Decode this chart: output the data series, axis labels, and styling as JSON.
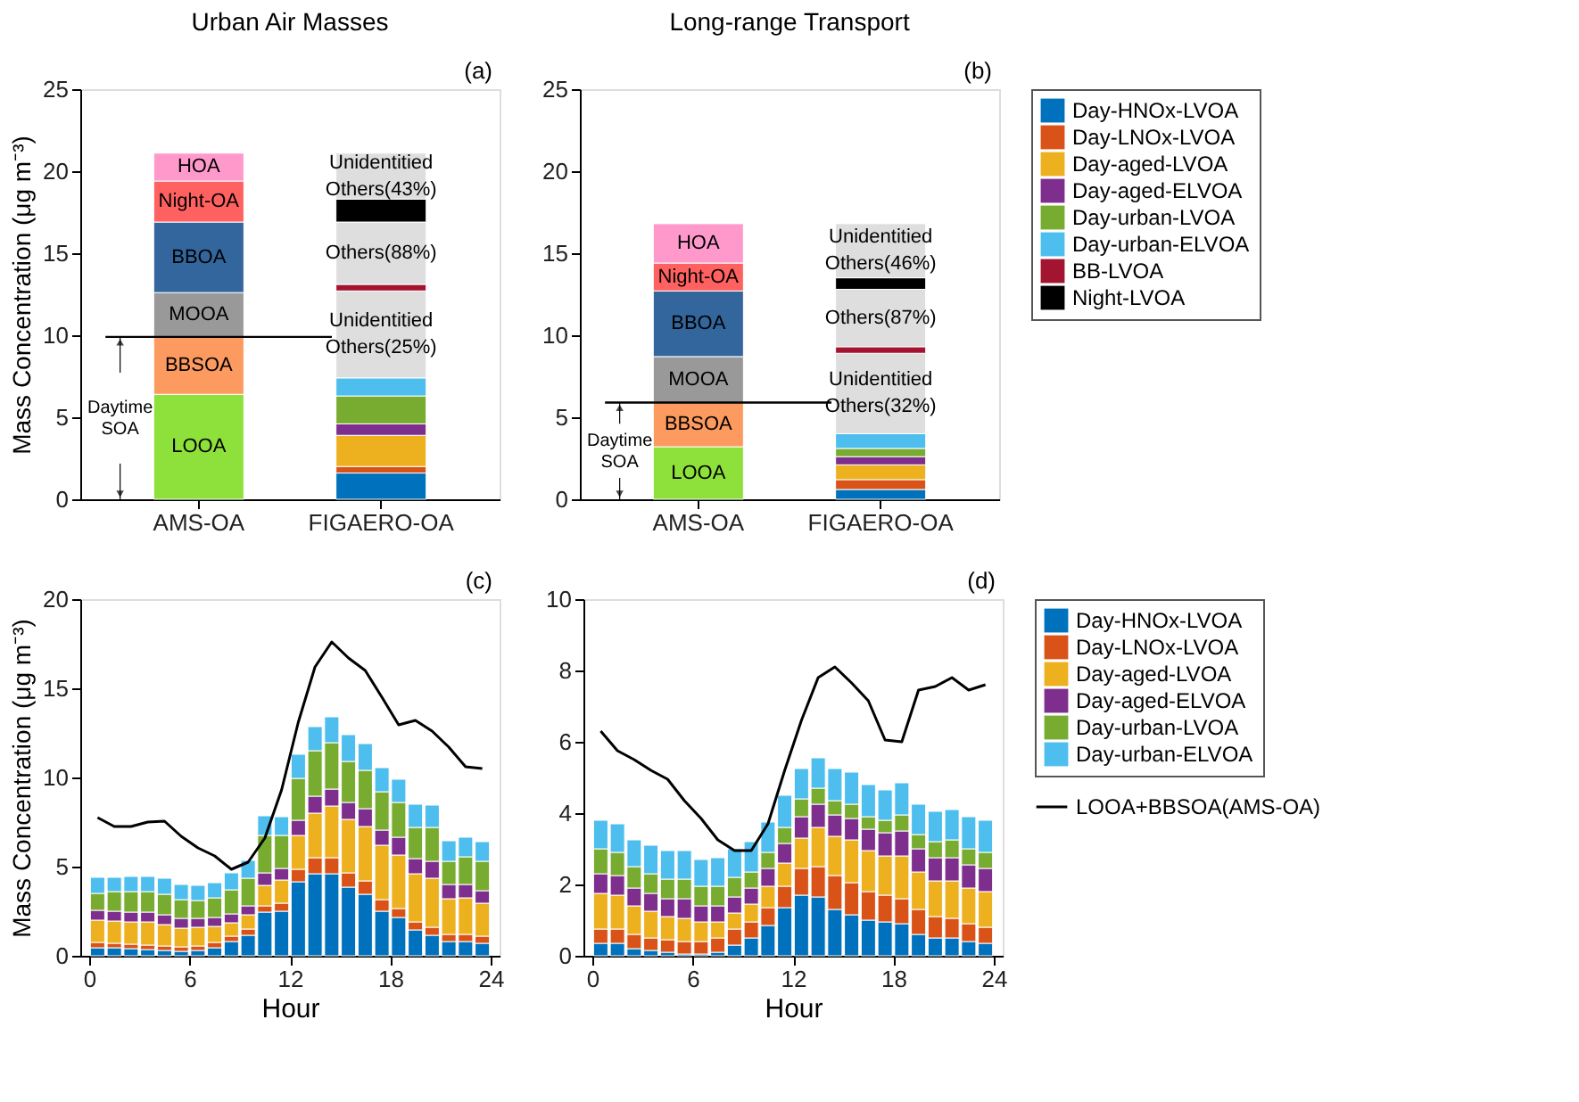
{
  "chart_data": [
    {
      "type": "bar",
      "stacked": true,
      "title": "Urban Air Masses",
      "ylabel": "Mass Concentration (μg m⁻³)",
      "categories": [
        "AMS-OA",
        "FIGAERO-OA"
      ],
      "ylim": [
        0,
        25
      ],
      "yticks": [
        0,
        5,
        10,
        15,
        20,
        25
      ],
      "series": [
        {
          "color": "#8ee03a",
          "values": [
            6.4,
            null
          ],
          "value_labels": [
            "LOOA",
            null
          ]
        },
        {
          "color": "#fc9a60",
          "values": [
            3.5,
            null
          ],
          "value_labels": [
            "BBSOA",
            null
          ]
        },
        {
          "color": "#999999",
          "values": [
            2.7,
            null
          ],
          "value_labels": [
            "MOOA",
            null
          ]
        },
        {
          "color": "#33669c",
          "values": [
            4.3,
            null
          ],
          "value_labels": [
            "BBOA",
            null
          ]
        },
        {
          "color": "#ff6060",
          "values": [
            2.5,
            null
          ],
          "value_labels": [
            "Night-OA",
            null
          ]
        },
        {
          "color": "#ff99cc",
          "values": [
            1.7,
            null
          ],
          "value_labels": [
            "HOA",
            null
          ]
        },
        {
          "color": "#0072bd",
          "values": [
            null,
            1.6
          ]
        },
        {
          "color": "#d95319",
          "values": [
            null,
            0.4
          ]
        },
        {
          "color": "#edb120",
          "values": [
            null,
            1.9
          ]
        },
        {
          "color": "#7e2f8e",
          "values": [
            null,
            0.7
          ]
        },
        {
          "color": "#77ac30",
          "values": [
            null,
            1.7
          ]
        },
        {
          "color": "#4dbeee",
          "values": [
            null,
            1.1
          ]
        },
        {
          "color": "#dedede",
          "values": [
            null,
            5.3
          ],
          "value_labels": [
            null,
            "Unidentitied Others(25%)"
          ]
        },
        {
          "color": "#a2142f",
          "values": [
            null,
            0.4
          ]
        },
        {
          "color": "#dedede",
          "values": [
            null,
            3.8
          ],
          "value_labels": [
            null,
            "Others(88%)"
          ]
        },
        {
          "color": "#000000",
          "values": [
            null,
            1.4
          ]
        },
        {
          "color": "#dedede",
          "values": [
            null,
            2.8
          ],
          "value_labels": [
            null,
            "Unidentitied Others(43%)"
          ]
        }
      ],
      "ref_lines": [
        {
          "axis": "y",
          "value": 9.9,
          "label": "Daytime SOA"
        }
      ],
      "annotations": [
        "(a)"
      ]
    },
    {
      "type": "bar",
      "stacked": true,
      "title": "Long-range Transport",
      "categories": [
        "AMS-OA",
        "FIGAERO-OA"
      ],
      "ylim": [
        0,
        25
      ],
      "yticks": [
        0,
        5,
        10,
        15,
        20,
        25
      ],
      "legend": "right",
      "series": [
        {
          "color": "#8ee03a",
          "values": [
            3.2,
            null
          ],
          "value_labels": [
            "LOOA",
            null
          ]
        },
        {
          "color": "#fc9a60",
          "values": [
            2.7,
            null
          ],
          "value_labels": [
            "BBSOA",
            null
          ]
        },
        {
          "color": "#999999",
          "values": [
            2.8,
            null
          ],
          "value_labels": [
            "MOOA",
            null
          ]
        },
        {
          "color": "#33669c",
          "values": [
            4.0,
            null
          ],
          "value_labels": [
            "BBOA",
            null
          ]
        },
        {
          "color": "#ff6060",
          "values": [
            1.7,
            null
          ],
          "value_labels": [
            "Night-OA",
            null
          ]
        },
        {
          "color": "#ff99cc",
          "values": [
            2.4,
            null
          ],
          "value_labels": [
            "HOA",
            null
          ]
        },
        {
          "name": "Day-HNOx-LVOA",
          "color": "#0072bd",
          "values": [
            null,
            0.6
          ]
        },
        {
          "name": "Day-LNOx-LVOA",
          "color": "#d95319",
          "values": [
            null,
            0.6
          ]
        },
        {
          "name": "Day-aged-LVOA",
          "color": "#edb120",
          "values": [
            null,
            0.9
          ]
        },
        {
          "name": "Day-aged-ELVOA",
          "color": "#7e2f8e",
          "values": [
            null,
            0.5
          ]
        },
        {
          "name": "Day-urban-LVOA",
          "color": "#77ac30",
          "values": [
            null,
            0.5
          ]
        },
        {
          "name": "Day-urban-ELVOA",
          "color": "#4dbeee",
          "values": [
            null,
            0.9
          ]
        },
        {
          "color": "#dedede",
          "values": [
            null,
            4.9
          ],
          "value_labels": [
            null,
            "Unidentitied Others(32%)"
          ]
        },
        {
          "name": "BB-LVOA",
          "color": "#a2142f",
          "values": [
            null,
            0.4
          ]
        },
        {
          "color": "#dedede",
          "values": [
            null,
            3.5
          ],
          "value_labels": [
            null,
            "Others(87%)"
          ]
        },
        {
          "name": "Night-LVOA",
          "color": "#000000",
          "values": [
            null,
            0.7
          ]
        },
        {
          "color": "#dedede",
          "values": [
            null,
            3.3
          ],
          "value_labels": [
            null,
            "Unidentitied Others(46%)"
          ]
        }
      ],
      "ref_lines": [
        {
          "axis": "y",
          "value": 5.9,
          "label": "Daytime SOA"
        }
      ],
      "annotations": [
        "(b)"
      ]
    },
    {
      "type": "bar",
      "stacked": true,
      "xlabel": "Hour",
      "ylabel": "Mass Concentration (μg m⁻³)",
      "x": [
        0.5,
        1.5,
        2.5,
        3.5,
        4.5,
        5.5,
        6.5,
        7.5,
        8.5,
        9.5,
        10.5,
        11.5,
        12.5,
        13.5,
        14.5,
        15.5,
        16.5,
        17.5,
        18.5,
        19.5,
        20.5,
        21.5,
        22.5,
        23.5
      ],
      "xlim": [
        0,
        24
      ],
      "xticks": [
        0,
        6,
        12,
        18,
        24
      ],
      "ylim": [
        0,
        20
      ],
      "yticks": [
        0,
        5,
        10,
        15,
        20
      ],
      "series": [
        {
          "color": "#0072bd",
          "values": [
            0.45,
            0.45,
            0.4,
            0.35,
            0.3,
            0.25,
            0.3,
            0.45,
            0.8,
            1.15,
            2.45,
            2.5,
            4.15,
            4.6,
            4.6,
            3.85,
            3.45,
            2.5,
            2.15,
            1.45,
            1.15,
            0.8,
            0.8,
            0.7
          ]
        },
        {
          "color": "#d95319",
          "values": [
            0.3,
            0.25,
            0.25,
            0.25,
            0.25,
            0.25,
            0.25,
            0.3,
            0.3,
            0.35,
            0.35,
            0.45,
            0.7,
            0.9,
            0.9,
            0.8,
            0.75,
            0.65,
            0.5,
            0.45,
            0.45,
            0.4,
            0.4,
            0.4
          ]
        },
        {
          "color": "#edb120",
          "values": [
            1.25,
            1.25,
            1.25,
            1.3,
            1.2,
            1.05,
            1.05,
            0.9,
            0.75,
            0.8,
            1.15,
            1.3,
            1.9,
            2.5,
            2.9,
            3.0,
            3.05,
            3.05,
            3.0,
            2.7,
            2.75,
            2.0,
            2.05,
            1.85
          ]
        },
        {
          "color": "#7e2f8e",
          "values": [
            0.55,
            0.55,
            0.55,
            0.55,
            0.55,
            0.55,
            0.5,
            0.5,
            0.5,
            0.5,
            0.7,
            0.65,
            0.85,
            0.95,
            0.95,
            0.95,
            1.0,
            0.85,
            1.0,
            0.85,
            0.95,
            0.8,
            0.75,
            0.7
          ]
        },
        {
          "color": "#77ac30",
          "values": [
            0.95,
            1.1,
            1.15,
            1.15,
            1.15,
            1.05,
            1.0,
            1.1,
            1.35,
            1.55,
            2.1,
            1.85,
            2.35,
            2.55,
            2.6,
            2.3,
            2.15,
            2.15,
            1.95,
            1.75,
            1.9,
            1.3,
            1.55,
            1.65
          ]
        },
        {
          "color": "#4dbeee",
          "values": [
            0.9,
            0.8,
            0.85,
            0.85,
            0.9,
            0.85,
            0.85,
            0.85,
            0.95,
            1.0,
            1.1,
            1.05,
            1.35,
            1.35,
            1.45,
            1.5,
            1.5,
            1.35,
            1.3,
            1.3,
            1.25,
            1.15,
            1.1,
            1.1
          ]
        },
        {
          "type": "line",
          "color": "#000000",
          "values": [
            7.75,
            7.25,
            7.25,
            7.5,
            7.55,
            6.7,
            6.05,
            5.6,
            4.85,
            5.25,
            6.6,
            9.3,
            13.1,
            16.2,
            17.6,
            16.7,
            16.0,
            14.5,
            12.95,
            13.2,
            12.6,
            11.7,
            10.6,
            10.5
          ]
        }
      ],
      "annotations": [
        "(c)"
      ]
    },
    {
      "type": "bar",
      "stacked": true,
      "xlabel": "Hour",
      "x": [
        0.5,
        1.5,
        2.5,
        3.5,
        4.5,
        5.5,
        6.5,
        7.5,
        8.5,
        9.5,
        10.5,
        11.5,
        12.5,
        13.5,
        14.5,
        15.5,
        16.5,
        17.5,
        18.5,
        19.5,
        20.5,
        21.5,
        22.5,
        23.5
      ],
      "xlim": [
        0,
        24
      ],
      "xticks": [
        0,
        6,
        12,
        18,
        24
      ],
      "ylim": [
        0,
        10
      ],
      "yticks": [
        0,
        2,
        4,
        6,
        8,
        10
      ],
      "legend": "right",
      "series": [
        {
          "name": "Day-HNOx-LVOA",
          "color": "#0072bd",
          "values": [
            0.35,
            0.35,
            0.2,
            0.15,
            0.1,
            0.05,
            0.05,
            0.1,
            0.3,
            0.5,
            0.85,
            1.35,
            1.7,
            1.65,
            1.3,
            1.15,
            1.0,
            0.95,
            0.9,
            0.6,
            0.5,
            0.5,
            0.4,
            0.35
          ]
        },
        {
          "name": "Day-LNOx-LVOA",
          "color": "#d95319",
          "values": [
            0.4,
            0.4,
            0.4,
            0.35,
            0.35,
            0.35,
            0.35,
            0.4,
            0.45,
            0.45,
            0.5,
            0.6,
            0.75,
            0.85,
            0.95,
            0.9,
            0.8,
            0.75,
            0.7,
            0.7,
            0.6,
            0.55,
            0.5,
            0.45
          ]
        },
        {
          "name": "Day-aged-LVOA",
          "color": "#edb120",
          "values": [
            1.0,
            0.95,
            0.8,
            0.75,
            0.65,
            0.65,
            0.55,
            0.45,
            0.45,
            0.5,
            0.6,
            0.65,
            0.85,
            1.1,
            1.1,
            1.2,
            1.15,
            1.1,
            1.2,
            1.05,
            1.0,
            1.05,
            1.0,
            1.0
          ]
        },
        {
          "name": "Day-aged-ELVOA",
          "color": "#7e2f8e",
          "values": [
            0.55,
            0.55,
            0.5,
            0.5,
            0.5,
            0.55,
            0.45,
            0.45,
            0.45,
            0.45,
            0.5,
            0.55,
            0.6,
            0.65,
            0.6,
            0.6,
            0.6,
            0.65,
            0.7,
            0.65,
            0.65,
            0.65,
            0.65,
            0.65
          ]
        },
        {
          "name": "Day-urban-LVOA",
          "color": "#77ac30",
          "values": [
            0.7,
            0.65,
            0.6,
            0.55,
            0.55,
            0.55,
            0.55,
            0.55,
            0.55,
            0.45,
            0.45,
            0.45,
            0.5,
            0.45,
            0.4,
            0.4,
            0.35,
            0.35,
            0.45,
            0.4,
            0.45,
            0.5,
            0.45,
            0.45
          ]
        },
        {
          "name": "Day-urban-ELVOA",
          "color": "#4dbeee",
          "values": [
            0.8,
            0.8,
            0.75,
            0.8,
            0.8,
            0.8,
            0.75,
            0.8,
            0.8,
            0.85,
            0.85,
            0.9,
            0.85,
            0.85,
            0.9,
            0.9,
            0.9,
            0.85,
            0.9,
            0.85,
            0.85,
            0.85,
            0.9,
            0.9
          ]
        },
        {
          "name": "LOOA+BBSOA(AMS-OA)",
          "type": "line",
          "color": "#000000",
          "values": [
            6.3,
            5.75,
            5.5,
            5.2,
            4.95,
            4.35,
            3.85,
            3.25,
            2.95,
            2.95,
            3.7,
            5.2,
            6.6,
            7.8,
            8.1,
            7.65,
            7.15,
            6.05,
            6.0,
            7.45,
            7.55,
            7.8,
            7.45,
            7.6
          ]
        }
      ],
      "annotations": [
        "(d)"
      ]
    }
  ]
}
